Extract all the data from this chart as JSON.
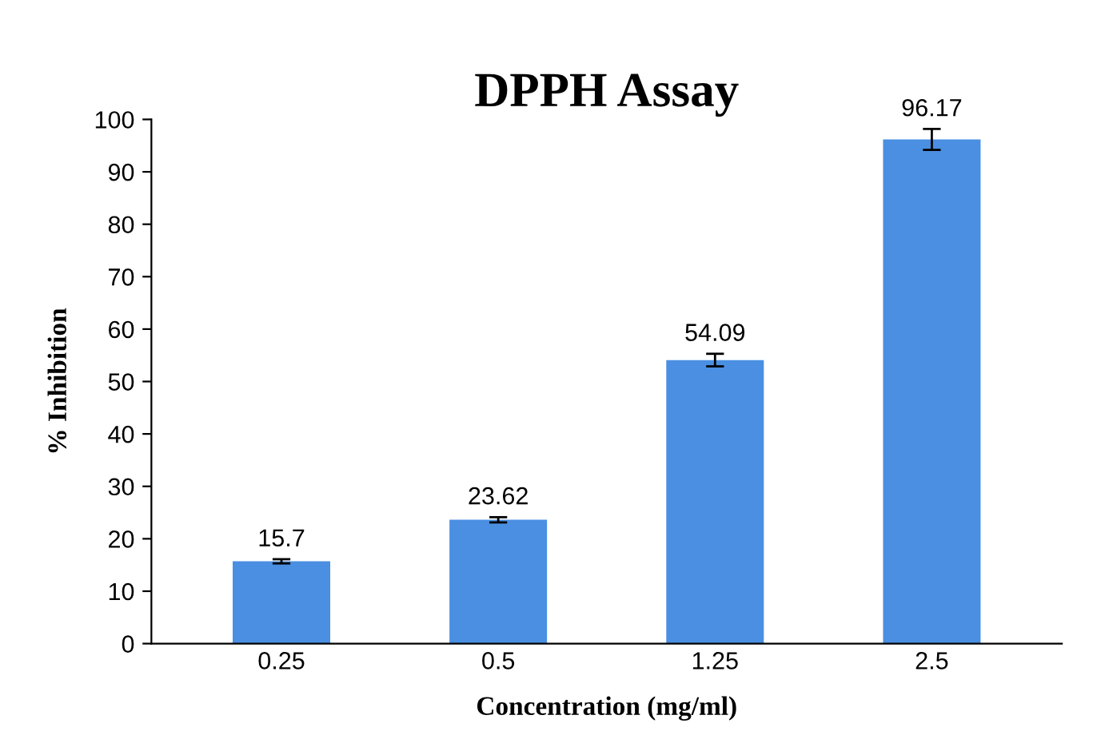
{
  "chart_data": {
    "type": "bar",
    "title": "DPPH Assay",
    "xlabel": "Concentration (mg/ml)",
    "ylabel": "% Inhibition",
    "categories": [
      "0.25",
      "0.5",
      "1.25",
      "2.5"
    ],
    "values": [
      15.7,
      23.62,
      54.09,
      96.17
    ],
    "errors": [
      0.4,
      0.5,
      1.2,
      2
    ],
    "color": "#4a8fe2",
    "data_labels": true,
    "ylim": [
      0,
      100
    ],
    "yticks": [
      0,
      10,
      20,
      30,
      40,
      50,
      60,
      70,
      80,
      90,
      100
    ],
    "grid": false,
    "legend": false
  }
}
